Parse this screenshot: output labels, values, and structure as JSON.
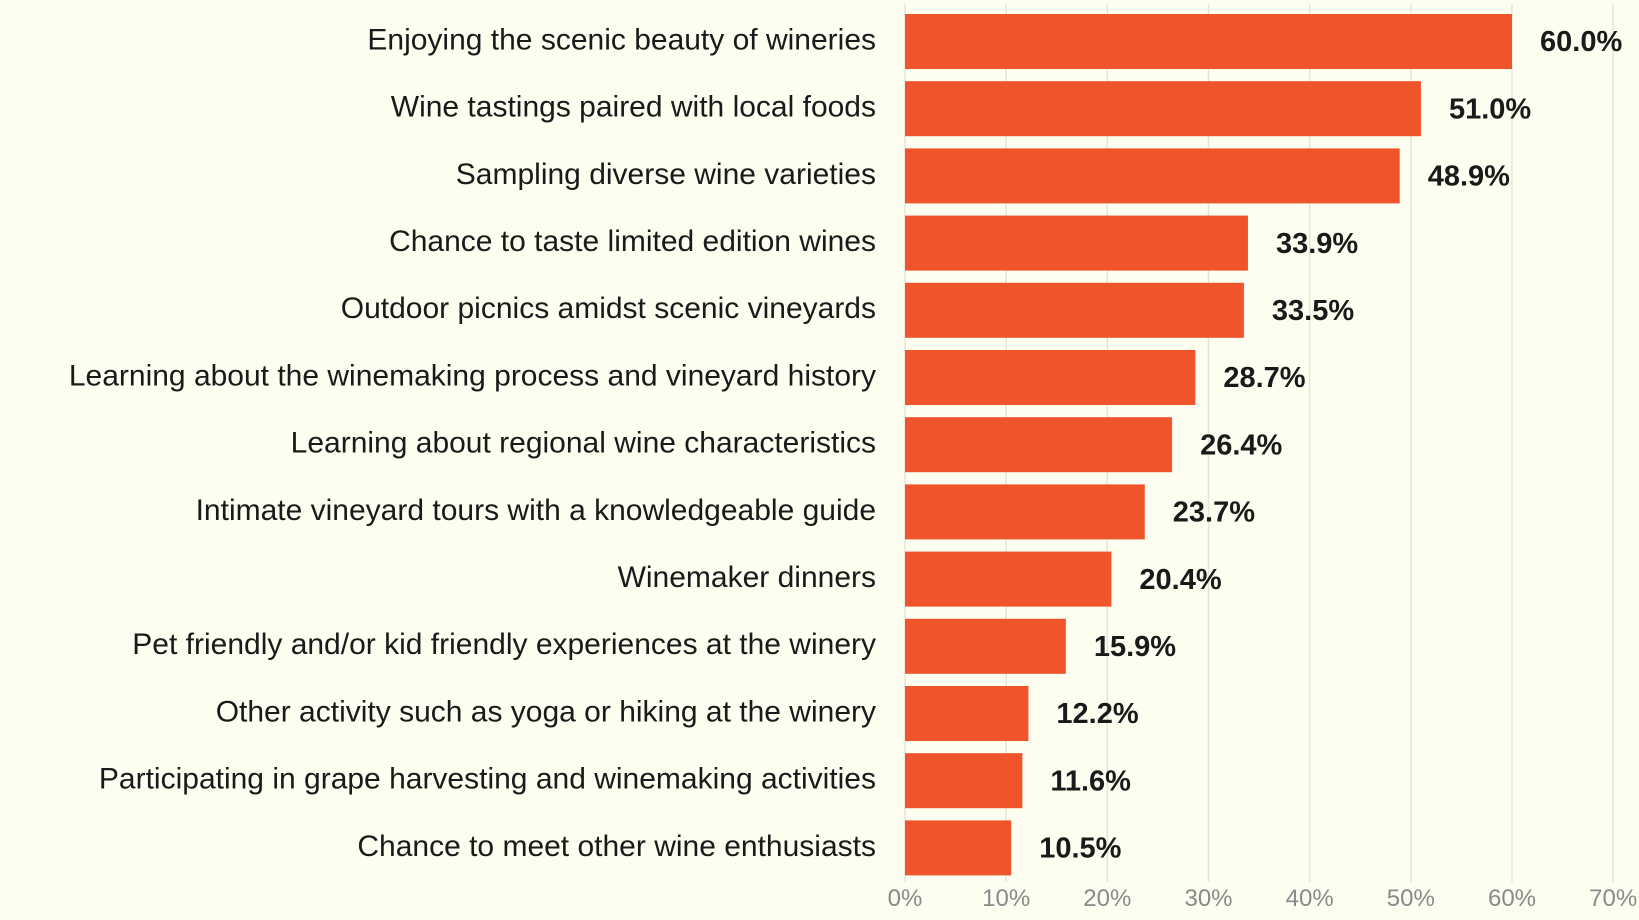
{
  "chart_data": {
    "type": "bar",
    "orientation": "horizontal",
    "categories": [
      "Enjoying the scenic beauty of wineries",
      "Wine tastings paired with local foods",
      "Sampling diverse wine varieties",
      "Chance to taste limited edition wines",
      "Outdoor picnics amidst scenic vineyards",
      "Learning about the winemaking process and vineyard history",
      "Learning about regional wine characteristics",
      "Intimate vineyard tours with a knowledgeable guide",
      "Winemaker dinners",
      "Pet friendly and/or kid friendly experiences at the winery",
      "Other activity such as yoga or hiking at the winery",
      "Participating in grape harvesting and winemaking activities",
      "Chance to meet other wine enthusiasts"
    ],
    "values": [
      60.0,
      51.0,
      48.9,
      33.9,
      33.5,
      28.7,
      26.4,
      23.7,
      20.4,
      15.9,
      12.2,
      11.6,
      10.5
    ],
    "value_labels": [
      "60.0%",
      "51.0%",
      "48.9%",
      "33.9%",
      "33.5%",
      "28.7%",
      "26.4%",
      "23.7%",
      "20.4%",
      "15.9%",
      "12.2%",
      "11.6%",
      "10.5%"
    ],
    "xlim": [
      0,
      70
    ],
    "x_ticks": [
      0,
      10,
      20,
      30,
      40,
      50,
      60,
      70
    ],
    "x_tick_labels": [
      "0%",
      "10%",
      "20%",
      "30%",
      "40%",
      "50%",
      "60%",
      "70%"
    ],
    "title": "",
    "xlabel": "",
    "ylabel": "",
    "grid": "vertical",
    "legend": "none",
    "bar_color": "#f0542b",
    "background_color": "#fdfdf0"
  }
}
